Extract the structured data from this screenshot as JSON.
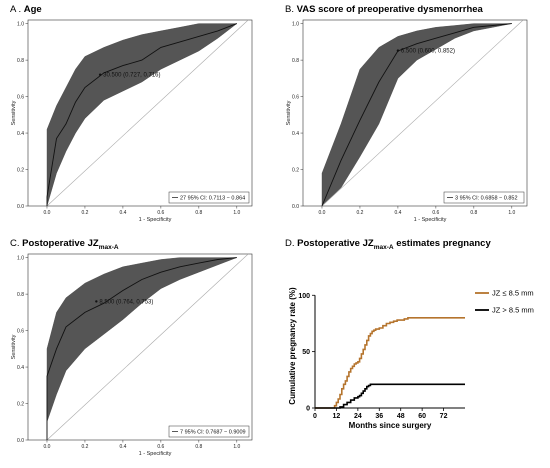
{
  "chart_data": [
    {
      "type": "line",
      "panel_letter": "A .",
      "title": "Age",
      "xlabel": "1 - Specificity",
      "ylabel": "Sensitivity",
      "x_ticks": [
        0.0,
        0.2,
        0.4,
        0.6,
        0.8,
        1.0
      ],
      "y_ticks": [
        0.0,
        0.2,
        0.4,
        0.6,
        0.8,
        1.0
      ],
      "xlim": [
        -0.1,
        1.08
      ],
      "ylim": [
        0,
        1.02
      ],
      "roc_x": [
        0,
        0.0,
        0.05,
        0.1,
        0.15,
        0.2,
        0.3,
        0.4,
        0.5,
        0.6,
        0.7,
        0.8,
        0.9,
        1.0
      ],
      "roc_y": [
        0,
        0.05,
        0.37,
        0.45,
        0.57,
        0.65,
        0.73,
        0.77,
        0.8,
        0.87,
        0.9,
        0.93,
        0.96,
        1.0
      ],
      "ci_upper": [
        0.05,
        0.42,
        0.55,
        0.65,
        0.75,
        0.82,
        0.87,
        0.91,
        0.94,
        0.96,
        0.98,
        1.0,
        1.0,
        1.0
      ],
      "ci_lower": [
        0,
        0.0,
        0.18,
        0.3,
        0.4,
        0.48,
        0.58,
        0.63,
        0.68,
        0.75,
        0.8,
        0.85,
        0.92,
        1.0
      ],
      "point_label": "30.500 (0.727, 0.716)",
      "point_xy": [
        0.28,
        0.72
      ],
      "legend": "27 95% CI: 0.7113 − 0.864",
      "legend_position": "bottom-right"
    },
    {
      "type": "line",
      "panel_letter": "B.",
      "title": "VAS score of preoperative dysmenorrhea",
      "xlabel": "1 - Specificity",
      "ylabel": "Sensitivity",
      "x_ticks": [
        0.0,
        0.2,
        0.4,
        0.6,
        0.8,
        1.0
      ],
      "y_ticks": [
        0.0,
        0.2,
        0.4,
        0.6,
        0.8,
        1.0
      ],
      "xlim": [
        -0.1,
        1.08
      ],
      "ylim": [
        0,
        1.02
      ],
      "roc_x": [
        0,
        0.1,
        0.2,
        0.3,
        0.4,
        0.5,
        0.6,
        0.7,
        0.8,
        0.9,
        1.0
      ],
      "roc_y": [
        0,
        0.25,
        0.47,
        0.68,
        0.85,
        0.89,
        0.92,
        0.95,
        0.98,
        0.99,
        1.0
      ],
      "ci_upper": [
        0.18,
        0.45,
        0.75,
        0.87,
        0.93,
        0.96,
        0.98,
        0.99,
        1.0,
        1.0,
        1.0
      ],
      "ci_lower": [
        0,
        0.1,
        0.27,
        0.45,
        0.7,
        0.8,
        0.86,
        0.92,
        0.96,
        0.98,
        1.0
      ],
      "point_label": "6.500 (0.600, 0.852)",
      "point_xy": [
        0.4,
        0.852
      ],
      "legend": "3 95% CI: 0.6858 − 0.852",
      "legend_position": "bottom-right"
    },
    {
      "type": "line",
      "panel_letter": "C.",
      "title": "Postoperative JZ",
      "title_sub": "max-A",
      "xlabel": "1 - Specificity",
      "ylabel": "Sensitivity",
      "x_ticks": [
        0.0,
        0.2,
        0.4,
        0.6,
        0.8,
        1.0
      ],
      "y_ticks": [
        0.0,
        0.2,
        0.4,
        0.6,
        0.8,
        1.0
      ],
      "xlim": [
        -0.1,
        1.08
      ],
      "ylim": [
        0,
        1.02
      ],
      "roc_x": [
        0,
        0.0,
        0.05,
        0.1,
        0.2,
        0.3,
        0.4,
        0.5,
        0.6,
        0.7,
        0.8,
        0.9,
        1.0
      ],
      "roc_y": [
        0,
        0.35,
        0.5,
        0.62,
        0.7,
        0.75,
        0.82,
        0.88,
        0.92,
        0.95,
        0.97,
        0.99,
        1.0
      ],
      "ci_upper": [
        0.08,
        0.5,
        0.7,
        0.78,
        0.86,
        0.91,
        0.95,
        0.97,
        0.99,
        1.0,
        1.0,
        1.0,
        1.0
      ],
      "ci_lower": [
        0,
        0.1,
        0.25,
        0.38,
        0.5,
        0.58,
        0.66,
        0.75,
        0.83,
        0.88,
        0.92,
        0.96,
        1.0
      ],
      "point_label": "8.500 (0.764, 0.753)",
      "point_xy": [
        0.26,
        0.76
      ],
      "legend": "7 95% CI: 0.7687 − 0.9009",
      "legend_position": "bottom-right"
    },
    {
      "type": "line",
      "panel_letter": "D.",
      "title": "Postoperative JZ",
      "title_sub": "max-A",
      "title_suffix": " estimates pregnancy",
      "xlabel": "Months since surgery",
      "ylabel": "Cumulative pregnancy rate (%)",
      "x_ticks": [
        0,
        12,
        24,
        36,
        48,
        60,
        72
      ],
      "y_ticks": [
        0,
        50,
        100
      ],
      "xlim": [
        0,
        84
      ],
      "ylim": [
        0,
        110
      ],
      "series": [
        {
          "name": "JZ ≤ 8.5 mm",
          "color": "#b5742d",
          "x": [
            0,
            10,
            11,
            12,
            13,
            14,
            15,
            16,
            17,
            18,
            19,
            20,
            21,
            22,
            23,
            24,
            25,
            26,
            27,
            28,
            29,
            30,
            31,
            32,
            33,
            34,
            36,
            38,
            40,
            42,
            44,
            46,
            48,
            50,
            52,
            54,
            84
          ],
          "y": [
            0,
            0,
            2,
            5,
            8,
            12,
            17,
            21,
            24,
            28,
            32,
            35,
            37,
            39,
            40,
            41,
            44,
            48,
            52,
            56,
            60,
            64,
            66,
            68,
            69,
            70,
            71,
            73,
            75,
            76,
            77,
            78,
            78,
            79,
            80,
            80,
            80
          ]
        },
        {
          "name": "JZ > 8.5 mm",
          "color": "#000000",
          "x": [
            0,
            12,
            14,
            16,
            18,
            20,
            22,
            24,
            25,
            26,
            27,
            28,
            29,
            30,
            31,
            32,
            84
          ],
          "y": [
            0,
            0,
            1,
            3,
            5,
            7,
            9,
            10,
            11,
            13,
            15,
            17,
            19,
            20,
            21,
            21,
            21
          ]
        }
      ],
      "legend_position": "top-right"
    }
  ]
}
